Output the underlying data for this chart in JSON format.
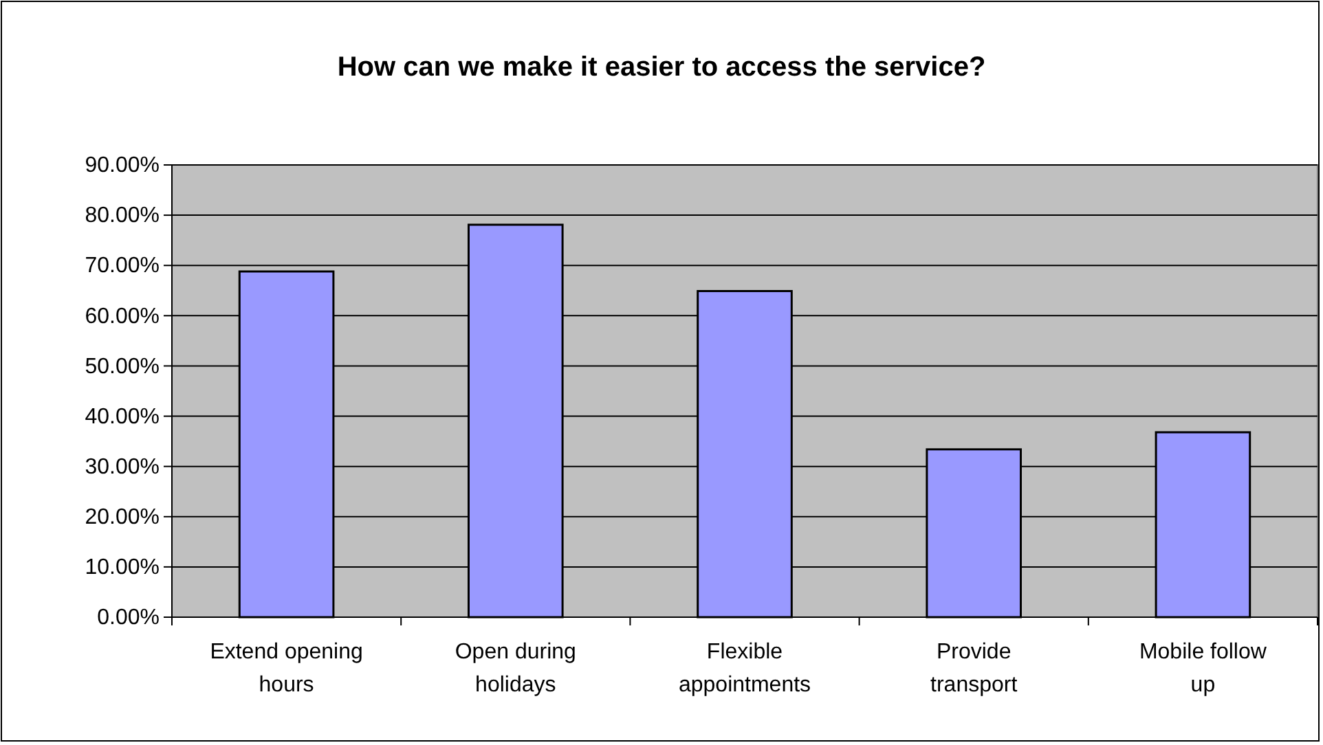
{
  "chart_data": {
    "type": "bar",
    "title": "How can we make it easier to access the service?",
    "categories": [
      "Extend opening hours",
      "Open during holidays",
      "Flexible appointments",
      "Provide transport",
      "Mobile follow up"
    ],
    "values": [
      68.8,
      78.1,
      64.9,
      33.4,
      36.8
    ],
    "color": "#9999ff",
    "ylim": [
      0,
      90
    ],
    "yticks": [
      {
        "value": 0,
        "label": "0.00%"
      },
      {
        "value": 10,
        "label": "10.00%"
      },
      {
        "value": 20,
        "label": "20.00%"
      },
      {
        "value": 30,
        "label": "30.00%"
      },
      {
        "value": 40,
        "label": "40.00%"
      },
      {
        "value": 50,
        "label": "50.00%"
      },
      {
        "value": 60,
        "label": "60.00%"
      },
      {
        "value": 70,
        "label": "70.00%"
      },
      {
        "value": 80,
        "label": "80.00%"
      },
      {
        "value": 90,
        "label": "90.00%"
      }
    ],
    "grid": "y"
  }
}
